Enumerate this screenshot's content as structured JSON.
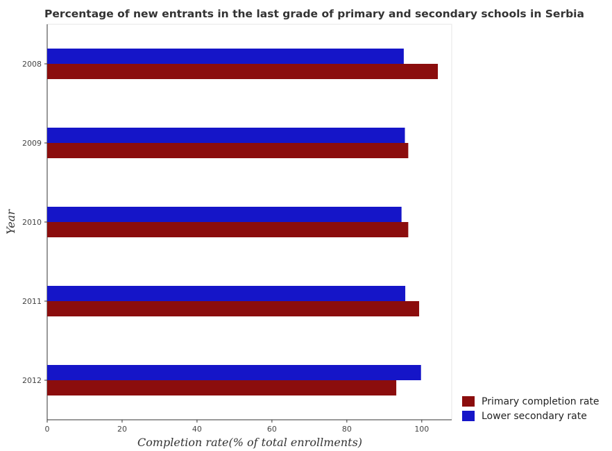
{
  "chart_data": {
    "type": "bar",
    "orientation": "horizontal",
    "title": "Percentage of new entrants in the last grade of primary  and secondary schools in Serbia",
    "xlabel": "Completion rate(% of total enrollments)",
    "ylabel": "Year",
    "categories": [
      "2008",
      "2009",
      "2010",
      "2011",
      "2012"
    ],
    "series": [
      {
        "name": "Primary completion rate",
        "color": "#8b0d0d",
        "values": [
          104.3,
          96.4,
          96.4,
          99.3,
          93.2
        ]
      },
      {
        "name": "Lower secondary rate",
        "color": "#1515c8",
        "values": [
          95.2,
          95.5,
          94.6,
          95.6,
          99.8
        ]
      }
    ],
    "xlim": [
      0,
      108
    ],
    "xticks": [
      0,
      20,
      40,
      60,
      80,
      100
    ],
    "grid": false,
    "legend_position": "bottom-right"
  }
}
